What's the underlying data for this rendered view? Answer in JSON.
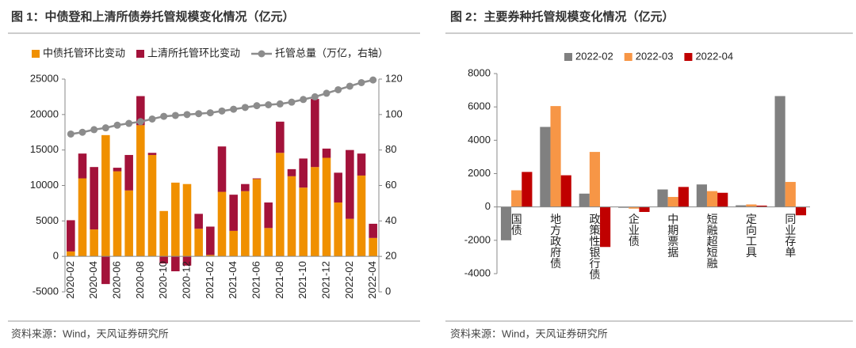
{
  "chart_data": [
    {
      "type": "bar",
      "stacked": true,
      "title": "图 1：中债登和上清所债券托管规模变化情况（亿元）",
      "source": "资料来源：Wind，天风证券研究所",
      "categories": [
        "2020-02",
        null,
        "2020-04",
        null,
        "2020-06",
        null,
        "2020-08",
        null,
        "2020-10",
        null,
        "2020-12",
        null,
        "2021-02",
        null,
        "2021-04",
        null,
        "2021-06",
        null,
        "2021-08",
        null,
        "2021-10",
        null,
        "2021-12",
        null,
        "2022-02",
        null,
        "2022-04"
      ],
      "series": [
        {
          "name": "中债托管环比变动",
          "color": "#f09000",
          "values": [
            700,
            11000,
            3800,
            17100,
            12000,
            9300,
            18500,
            14300,
            6400,
            10400,
            10200,
            3900,
            200,
            9100,
            3600,
            9200,
            10900,
            4000,
            14600,
            11300,
            9700,
            12600,
            13900,
            7600,
            5300,
            11400,
            2600
          ]
        },
        {
          "name": "上清所托管环比变动",
          "color": "#a3123a",
          "values": [
            4400,
            3500,
            8800,
            -3900,
            500,
            5000,
            4100,
            300,
            -1000,
            -2100,
            -1300,
            2100,
            4000,
            6400,
            5100,
            1000,
            100,
            3600,
            4400,
            1000,
            4100,
            9600,
            1300,
            4200,
            9700,
            3100,
            2000
          ]
        },
        {
          "name": "托管总量（万亿，右轴）",
          "color": "#8c8c8c",
          "type": "line",
          "axis": "y2",
          "values": [
            89,
            90,
            91.5,
            92.5,
            94,
            95,
            96,
            97.5,
            99,
            99.5,
            100,
            100.5,
            101,
            102,
            103,
            104,
            105,
            105.5,
            106,
            107,
            108.5,
            110,
            112,
            114,
            116,
            118,
            119.5
          ]
        }
      ],
      "ylim": [
        -5000,
        25000
      ],
      "yticks": [
        -5000,
        0,
        5000,
        10000,
        15000,
        20000,
        25000
      ],
      "y2lim": [
        0,
        120
      ],
      "y2ticks": [
        0,
        20,
        40,
        60,
        80,
        100,
        120
      ]
    },
    {
      "type": "bar",
      "stacked": false,
      "title": "图 2：主要券种托管规模变化情况（亿元）",
      "source": "资料来源：Wind，天风证券研究所",
      "categories": [
        "国债",
        "地方政府债",
        "政策性银行债",
        "企业债",
        "中期票据",
        "短融超短融",
        "定向工具",
        "同业存单"
      ],
      "series": [
        {
          "name": "2022-02",
          "color": "#808080",
          "values": [
            -2000,
            4800,
            800,
            -50,
            1050,
            1350,
            100,
            6650
          ]
        },
        {
          "name": "2022-03",
          "color": "#f79646",
          "values": [
            1000,
            6050,
            3300,
            -100,
            600,
            950,
            150,
            1500
          ]
        },
        {
          "name": "2022-04",
          "color": "#c00000",
          "values": [
            2100,
            1900,
            -2400,
            -300,
            1200,
            850,
            80,
            -500
          ]
        }
      ],
      "ylim": [
        -4000,
        8000
      ],
      "yticks": [
        -4000,
        -2000,
        0,
        2000,
        4000,
        6000,
        8000
      ]
    }
  ]
}
